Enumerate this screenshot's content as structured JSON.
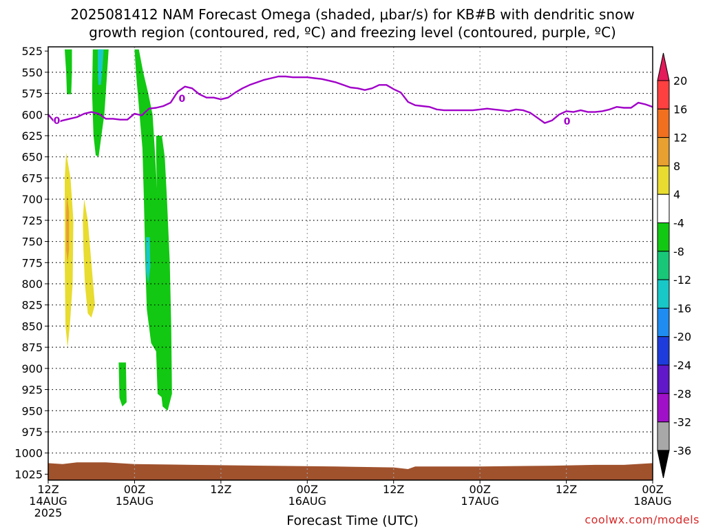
{
  "title_line1": "2025081412 NAM Forecast Omega (shaded, μbar/s) for KB#B with dendritic snow",
  "title_line2": "growth region (contoured, red, ºC) and freezing level (contoured, purple, ºC)",
  "credit": "coolwx.com/models",
  "chart_data": {
    "type": "heatmap",
    "xlabel": "Forecast Time (UTC)",
    "ylabel": "",
    "y_ticks": [
      525,
      550,
      575,
      600,
      625,
      650,
      675,
      700,
      725,
      750,
      775,
      800,
      825,
      850,
      875,
      900,
      925,
      950,
      975,
      1000,
      1025
    ],
    "x_ticks": [
      {
        "hour": 0,
        "l1": "12Z",
        "l2": "14AUG",
        "l3": "2025"
      },
      {
        "hour": 12,
        "l1": "00Z",
        "l2": "15AUG",
        "l3": ""
      },
      {
        "hour": 24,
        "l1": "12Z",
        "l2": "",
        "l3": ""
      },
      {
        "hour": 36,
        "l1": "00Z",
        "l2": "16AUG",
        "l3": ""
      },
      {
        "hour": 48,
        "l1": "12Z",
        "l2": "",
        "l3": ""
      },
      {
        "hour": 60,
        "l1": "00Z",
        "l2": "17AUG",
        "l3": ""
      },
      {
        "hour": 72,
        "l1": "12Z",
        "l2": "",
        "l3": ""
      },
      {
        "hour": 84,
        "l1": "00Z",
        "l2": "18AUG",
        "l3": ""
      }
    ],
    "colorbar": {
      "labels": [
        "20",
        "16",
        "12",
        "8",
        "4",
        "-4",
        "-8",
        "-12",
        "-16",
        "-20",
        "-24",
        "-28",
        "-32",
        "-36"
      ],
      "colors": [
        "#e41a5a",
        "#ff4040",
        "#f07020",
        "#e8a030",
        "#e8dc30",
        "#ffffff",
        "#12c812",
        "#18c878",
        "#18c8c8",
        "#1e8cf0",
        "#1e3cdc",
        "#6018c8",
        "#a010c8",
        "#a8a8a8",
        "#000000"
      ]
    },
    "freezing_level": {
      "label": "0",
      "color": "#a000c8",
      "points": [
        [
          0,
          600
        ],
        [
          1,
          610
        ],
        [
          2,
          607
        ],
        [
          3,
          605
        ],
        [
          4,
          603
        ],
        [
          5,
          599
        ],
        [
          6,
          597
        ],
        [
          7,
          599
        ],
        [
          8,
          605
        ],
        [
          9,
          605
        ],
        [
          10,
          606
        ],
        [
          11,
          606
        ],
        [
          12,
          599
        ],
        [
          13,
          601
        ],
        [
          14,
          593
        ],
        [
          15,
          592
        ],
        [
          16,
          590
        ],
        [
          17,
          586
        ],
        [
          18,
          573
        ],
        [
          19,
          567
        ],
        [
          20,
          569
        ],
        [
          21,
          576
        ],
        [
          22,
          580
        ],
        [
          23,
          580
        ],
        [
          24,
          582
        ],
        [
          25,
          580
        ],
        [
          26,
          574
        ],
        [
          27,
          569
        ],
        [
          28,
          565
        ],
        [
          29,
          562
        ],
        [
          30,
          559
        ],
        [
          31,
          557
        ],
        [
          32,
          555
        ],
        [
          33,
          555
        ],
        [
          34,
          556
        ],
        [
          35,
          556
        ],
        [
          36,
          556
        ],
        [
          37,
          557
        ],
        [
          38,
          558
        ],
        [
          39,
          560
        ],
        [
          40,
          562
        ],
        [
          41,
          565
        ],
        [
          42,
          568
        ],
        [
          43,
          569
        ],
        [
          44,
          571
        ],
        [
          45,
          569
        ],
        [
          46,
          565
        ],
        [
          47,
          565
        ],
        [
          48,
          570
        ],
        [
          49,
          574
        ],
        [
          50,
          585
        ],
        [
          51,
          589
        ],
        [
          52,
          590
        ],
        [
          53,
          591
        ],
        [
          54,
          594
        ],
        [
          55,
          595
        ],
        [
          56,
          595
        ],
        [
          57,
          595
        ],
        [
          58,
          595
        ],
        [
          59,
          595
        ],
        [
          60,
          594
        ],
        [
          61,
          593
        ],
        [
          62,
          594
        ],
        [
          63,
          595
        ],
        [
          64,
          596
        ],
        [
          65,
          594
        ],
        [
          66,
          595
        ],
        [
          67,
          598
        ],
        [
          68,
          604
        ],
        [
          69,
          610
        ],
        [
          70,
          607
        ],
        [
          71,
          600
        ],
        [
          72,
          596
        ],
        [
          73,
          597
        ],
        [
          74,
          595
        ],
        [
          75,
          597
        ],
        [
          76,
          597
        ],
        [
          77,
          596
        ],
        [
          78,
          594
        ],
        [
          79,
          591
        ],
        [
          80,
          592
        ],
        [
          81,
          592
        ],
        [
          82,
          586
        ],
        [
          83,
          588
        ],
        [
          84,
          591
        ]
      ]
    },
    "regions": [
      {
        "color": "#12c812",
        "pts": [
          [
            2.3,
            523
          ],
          [
            3.3,
            523
          ],
          [
            3.3,
            550
          ],
          [
            3.2,
            576
          ],
          [
            2.6,
            576
          ],
          [
            2.5,
            550
          ]
        ]
      },
      {
        "color": "#12c812",
        "pts": [
          [
            6.2,
            523
          ],
          [
            8.4,
            523
          ],
          [
            8.0,
            575
          ],
          [
            7.8,
            600
          ],
          [
            7.4,
            625
          ],
          [
            7.0,
            650
          ],
          [
            6.6,
            648
          ],
          [
            6.3,
            625
          ],
          [
            6.2,
            600
          ],
          [
            6.1,
            575
          ]
        ]
      },
      {
        "color": "#18c8c8",
        "pts": [
          [
            6.9,
            523
          ],
          [
            7.7,
            523
          ],
          [
            7.5,
            550
          ],
          [
            7.3,
            565
          ],
          [
            7.0,
            565
          ],
          [
            6.9,
            550
          ]
        ]
      },
      {
        "color": "#12c812",
        "pts": [
          [
            11.2,
            523
          ],
          [
            12.0,
            523
          ],
          [
            12.2,
            550
          ],
          [
            12.7,
            600
          ],
          [
            13.1,
            640
          ],
          [
            13.3,
            700
          ],
          [
            13.5,
            775
          ],
          [
            13.7,
            830
          ],
          [
            14.3,
            870
          ],
          [
            15.0,
            880
          ],
          [
            15.2,
            930
          ],
          [
            15.9,
            935
          ],
          [
            15.8,
            850
          ],
          [
            15.5,
            775
          ],
          [
            15.2,
            700
          ],
          [
            14.8,
            640
          ],
          [
            14.5,
            600
          ],
          [
            13.9,
            575
          ],
          [
            13.2,
            550
          ],
          [
            12.6,
            523
          ]
        ]
      },
      {
        "color": "#18c8c8",
        "pts": [
          [
            13.6,
            745
          ],
          [
            14.1,
            745
          ],
          [
            14.2,
            780
          ],
          [
            13.9,
            800
          ],
          [
            13.6,
            785
          ]
        ]
      },
      {
        "color": "#12c812",
        "pts": [
          [
            15.0,
            625
          ],
          [
            15.8,
            625
          ],
          [
            16.2,
            650
          ],
          [
            16.5,
            700
          ],
          [
            16.9,
            775
          ],
          [
            17.1,
            850
          ],
          [
            17.2,
            930
          ],
          [
            16.6,
            950
          ],
          [
            15.9,
            945
          ],
          [
            15.7,
            930
          ],
          [
            15.5,
            850
          ],
          [
            15.3,
            750
          ],
          [
            15.0,
            650
          ]
        ]
      },
      {
        "color": "#12c812",
        "pts": [
          [
            9.8,
            893
          ],
          [
            10.8,
            893
          ],
          [
            10.9,
            940
          ],
          [
            10.3,
            945
          ],
          [
            9.9,
            935
          ]
        ]
      },
      {
        "color": "#e8dc30",
        "pts": [
          [
            2.5,
            645
          ],
          [
            3.1,
            675
          ],
          [
            3.5,
            725
          ],
          [
            3.4,
            800
          ],
          [
            3.0,
            850
          ],
          [
            2.7,
            875
          ],
          [
            2.4,
            850
          ],
          [
            2.3,
            775
          ],
          [
            2.3,
            700
          ],
          [
            2.3,
            675
          ]
        ]
      },
      {
        "color": "#e8a030",
        "pts": [
          [
            2.6,
            695
          ],
          [
            2.9,
            715
          ],
          [
            2.9,
            760
          ],
          [
            2.7,
            775
          ],
          [
            2.5,
            760
          ],
          [
            2.5,
            715
          ]
        ]
      },
      {
        "color": "#e8dc30",
        "pts": [
          [
            5.0,
            700
          ],
          [
            5.5,
            725
          ],
          [
            6.0,
            775
          ],
          [
            6.5,
            825
          ],
          [
            6.0,
            840
          ],
          [
            5.5,
            835
          ],
          [
            5.1,
            800
          ],
          [
            4.9,
            760
          ],
          [
            4.8,
            725
          ]
        ]
      }
    ],
    "ground": {
      "color": "#a0522d",
      "top": [
        [
          0,
          1012
        ],
        [
          2,
          1013
        ],
        [
          4,
          1011
        ],
        [
          8,
          1011
        ],
        [
          12,
          1013
        ],
        [
          20,
          1014
        ],
        [
          30,
          1015
        ],
        [
          40,
          1016
        ],
        [
          48,
          1017
        ],
        [
          50,
          1019
        ],
        [
          51,
          1016
        ],
        [
          60,
          1016
        ],
        [
          70,
          1015
        ],
        [
          76,
          1014
        ],
        [
          80,
          1014
        ],
        [
          84,
          1012
        ]
      ]
    }
  }
}
